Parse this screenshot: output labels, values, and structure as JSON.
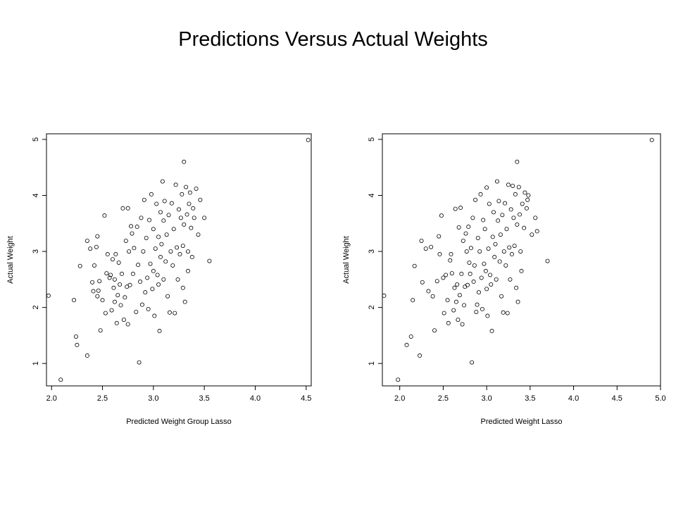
{
  "slide": {
    "title": "Predictions Versus Actual Weights"
  },
  "chart_data": [
    {
      "type": "scatter",
      "xlabel": "Predicted Weight Group Lasso",
      "ylabel": "Actual Weight",
      "xlim": [
        1.95,
        4.55
      ],
      "ylim": [
        0.6,
        5.1
      ],
      "xticks": [
        "2.0",
        "2.5",
        "3.0",
        "3.5",
        "4.0",
        "4.5"
      ],
      "yticks": [
        "1",
        "2",
        "3",
        "4",
        "5"
      ],
      "grid": false,
      "points": [
        [
          1.97,
          2.21
        ],
        [
          2.09,
          0.71
        ],
        [
          2.22,
          2.13
        ],
        [
          2.24,
          1.48
        ],
        [
          2.25,
          1.33
        ],
        [
          2.28,
          2.74
        ],
        [
          2.35,
          1.14
        ],
        [
          2.35,
          3.19
        ],
        [
          2.38,
          3.05
        ],
        [
          2.4,
          2.45
        ],
        [
          2.41,
          2.29
        ],
        [
          2.42,
          2.75
        ],
        [
          2.44,
          3.08
        ],
        [
          2.45,
          2.2
        ],
        [
          2.45,
          3.27
        ],
        [
          2.46,
          2.3
        ],
        [
          2.47,
          2.47
        ],
        [
          2.48,
          1.59
        ],
        [
          2.5,
          2.13
        ],
        [
          2.52,
          3.64
        ],
        [
          2.53,
          1.9
        ],
        [
          2.54,
          2.61
        ],
        [
          2.55,
          2.95
        ],
        [
          2.57,
          2.53
        ],
        [
          2.58,
          2.58
        ],
        [
          2.59,
          1.95
        ],
        [
          2.6,
          2.86
        ],
        [
          2.61,
          2.35
        ],
        [
          2.62,
          2.5
        ],
        [
          2.62,
          2.1
        ],
        [
          2.63,
          2.95
        ],
        [
          2.64,
          1.72
        ],
        [
          2.65,
          2.22
        ],
        [
          2.66,
          2.8
        ],
        [
          2.67,
          2.41
        ],
        [
          2.68,
          2.04
        ],
        [
          2.69,
          2.6
        ],
        [
          2.7,
          3.77
        ],
        [
          2.71,
          1.78
        ],
        [
          2.72,
          2.18
        ],
        [
          2.73,
          3.19
        ],
        [
          2.74,
          2.37
        ],
        [
          2.75,
          1.7
        ],
        [
          2.75,
          3.77
        ],
        [
          2.76,
          3.0
        ],
        [
          2.77,
          2.4
        ],
        [
          2.78,
          3.45
        ],
        [
          2.79,
          3.32
        ],
        [
          2.8,
          2.6
        ],
        [
          2.81,
          3.06
        ],
        [
          2.83,
          1.92
        ],
        [
          2.84,
          3.44
        ],
        [
          2.85,
          2.76
        ],
        [
          2.86,
          1.02
        ],
        [
          2.87,
          2.46
        ],
        [
          2.88,
          3.6
        ],
        [
          2.89,
          2.05
        ],
        [
          2.9,
          3.0
        ],
        [
          2.91,
          3.92
        ],
        [
          2.92,
          2.27
        ],
        [
          2.93,
          3.24
        ],
        [
          2.94,
          2.53
        ],
        [
          2.95,
          1.97
        ],
        [
          2.96,
          3.56
        ],
        [
          2.97,
          2.78
        ],
        [
          2.98,
          4.02
        ],
        [
          2.99,
          2.33
        ],
        [
          3.0,
          2.65
        ],
        [
          3.0,
          3.4
        ],
        [
          3.01,
          1.85
        ],
        [
          3.02,
          3.05
        ],
        [
          3.03,
          3.85
        ],
        [
          3.04,
          2.58
        ],
        [
          3.05,
          2.41
        ],
        [
          3.05,
          3.26
        ],
        [
          3.06,
          1.58
        ],
        [
          3.07,
          3.7
        ],
        [
          3.07,
          2.9
        ],
        [
          3.08,
          3.13
        ],
        [
          3.09,
          4.25
        ],
        [
          3.1,
          2.5
        ],
        [
          3.1,
          3.55
        ],
        [
          3.11,
          3.9
        ],
        [
          3.12,
          2.82
        ],
        [
          3.13,
          3.3
        ],
        [
          3.14,
          2.2
        ],
        [
          3.15,
          3.65
        ],
        [
          3.16,
          1.91
        ],
        [
          3.17,
          3.0
        ],
        [
          3.18,
          3.86
        ],
        [
          3.19,
          2.75
        ],
        [
          3.2,
          3.4
        ],
        [
          3.21,
          1.9
        ],
        [
          3.22,
          4.19
        ],
        [
          3.23,
          3.07
        ],
        [
          3.24,
          2.5
        ],
        [
          3.25,
          3.75
        ],
        [
          3.26,
          2.95
        ],
        [
          3.27,
          3.6
        ],
        [
          3.28,
          4.02
        ],
        [
          3.29,
          3.1
        ],
        [
          3.29,
          2.35
        ],
        [
          3.3,
          4.6
        ],
        [
          3.3,
          3.48
        ],
        [
          3.31,
          2.1
        ],
        [
          3.32,
          4.15
        ],
        [
          3.33,
          3.66
        ],
        [
          3.34,
          3.0
        ],
        [
          3.34,
          2.65
        ],
        [
          3.35,
          3.85
        ],
        [
          3.36,
          4.05
        ],
        [
          3.37,
          3.42
        ],
        [
          3.38,
          2.9
        ],
        [
          3.39,
          3.77
        ],
        [
          3.4,
          3.6
        ],
        [
          3.42,
          4.12
        ],
        [
          3.44,
          3.3
        ],
        [
          3.46,
          3.92
        ],
        [
          3.5,
          3.6
        ],
        [
          3.55,
          2.83
        ],
        [
          4.52,
          4.99
        ]
      ]
    },
    {
      "type": "scatter",
      "xlabel": "Predicted Weight Lasso",
      "ylabel": "Actual Weight",
      "xlim": [
        1.8,
        5.0
      ],
      "ylim": [
        0.6,
        5.1
      ],
      "xticks": [
        "2.0",
        "2.5",
        "3.0",
        "3.5",
        "4.0",
        "4.5",
        "5.0"
      ],
      "yticks": [
        "1",
        "2",
        "3",
        "4",
        "5"
      ],
      "grid": false,
      "points": [
        [
          1.82,
          2.21
        ],
        [
          1.98,
          0.71
        ],
        [
          2.08,
          1.33
        ],
        [
          2.13,
          1.48
        ],
        [
          2.15,
          2.13
        ],
        [
          2.17,
          2.74
        ],
        [
          2.23,
          1.14
        ],
        [
          2.25,
          3.19
        ],
        [
          2.26,
          2.45
        ],
        [
          2.3,
          3.05
        ],
        [
          2.33,
          2.29
        ],
        [
          2.36,
          3.08
        ],
        [
          2.38,
          2.2
        ],
        [
          2.4,
          1.59
        ],
        [
          2.43,
          2.47
        ],
        [
          2.45,
          3.27
        ],
        [
          2.46,
          2.95
        ],
        [
          2.48,
          3.64
        ],
        [
          2.5,
          2.53
        ],
        [
          2.51,
          1.9
        ],
        [
          2.53,
          2.58
        ],
        [
          2.55,
          2.13
        ],
        [
          2.56,
          1.72
        ],
        [
          2.58,
          2.84
        ],
        [
          2.59,
          2.95
        ],
        [
          2.6,
          2.61
        ],
        [
          2.62,
          1.95
        ],
        [
          2.63,
          2.35
        ],
        [
          2.64,
          3.76
        ],
        [
          2.65,
          2.1
        ],
        [
          2.66,
          2.41
        ],
        [
          2.67,
          1.78
        ],
        [
          2.68,
          3.43
        ],
        [
          2.69,
          2.22
        ],
        [
          2.7,
          3.78
        ],
        [
          2.71,
          2.6
        ],
        [
          2.72,
          1.7
        ],
        [
          2.73,
          3.19
        ],
        [
          2.74,
          2.04
        ],
        [
          2.75,
          2.37
        ],
        [
          2.76,
          3.32
        ],
        [
          2.77,
          3.0
        ],
        [
          2.78,
          2.4
        ],
        [
          2.79,
          3.44
        ],
        [
          2.8,
          2.8
        ],
        [
          2.81,
          2.6
        ],
        [
          2.82,
          3.06
        ],
        [
          2.83,
          1.02
        ],
        [
          2.84,
          3.6
        ],
        [
          2.85,
          2.46
        ],
        [
          2.86,
          2.75
        ],
        [
          2.87,
          3.92
        ],
        [
          2.88,
          1.92
        ],
        [
          2.89,
          2.05
        ],
        [
          2.9,
          3.24
        ],
        [
          2.91,
          2.27
        ],
        [
          2.92,
          3.0
        ],
        [
          2.93,
          4.02
        ],
        [
          2.94,
          2.53
        ],
        [
          2.95,
          1.97
        ],
        [
          2.96,
          3.56
        ],
        [
          2.97,
          2.78
        ],
        [
          2.98,
          3.4
        ],
        [
          2.99,
          2.65
        ],
        [
          3.0,
          4.14
        ],
        [
          3.0,
          2.33
        ],
        [
          3.01,
          1.85
        ],
        [
          3.02,
          3.05
        ],
        [
          3.03,
          3.85
        ],
        [
          3.04,
          2.58
        ],
        [
          3.05,
          2.41
        ],
        [
          3.06,
          1.58
        ],
        [
          3.07,
          3.26
        ],
        [
          3.08,
          3.7
        ],
        [
          3.09,
          2.9
        ],
        [
          3.1,
          3.13
        ],
        [
          3.11,
          2.5
        ],
        [
          3.12,
          4.25
        ],
        [
          3.13,
          3.55
        ],
        [
          3.14,
          3.9
        ],
        [
          3.15,
          2.82
        ],
        [
          3.16,
          3.3
        ],
        [
          3.17,
          2.2
        ],
        [
          3.18,
          3.65
        ],
        [
          3.19,
          1.91
        ],
        [
          3.2,
          3.0
        ],
        [
          3.21,
          3.86
        ],
        [
          3.22,
          2.75
        ],
        [
          3.23,
          3.4
        ],
        [
          3.24,
          1.9
        ],
        [
          3.25,
          4.19
        ],
        [
          3.26,
          3.07
        ],
        [
          3.27,
          2.5
        ],
        [
          3.28,
          3.75
        ],
        [
          3.29,
          2.95
        ],
        [
          3.3,
          4.17
        ],
        [
          3.31,
          3.6
        ],
        [
          3.32,
          3.1
        ],
        [
          3.33,
          4.02
        ],
        [
          3.34,
          2.35
        ],
        [
          3.35,
          3.48
        ],
        [
          3.35,
          4.6
        ],
        [
          3.36,
          2.1
        ],
        [
          3.37,
          4.15
        ],
        [
          3.38,
          3.66
        ],
        [
          3.39,
          3.0
        ],
        [
          3.4,
          2.65
        ],
        [
          3.41,
          3.85
        ],
        [
          3.43,
          3.42
        ],
        [
          3.44,
          4.05
        ],
        [
          3.46,
          3.77
        ],
        [
          3.47,
          3.92
        ],
        [
          3.48,
          4.0
        ],
        [
          3.52,
          3.3
        ],
        [
          3.56,
          3.6
        ],
        [
          3.58,
          3.36
        ],
        [
          3.7,
          2.83
        ],
        [
          4.9,
          4.99
        ]
      ]
    }
  ]
}
